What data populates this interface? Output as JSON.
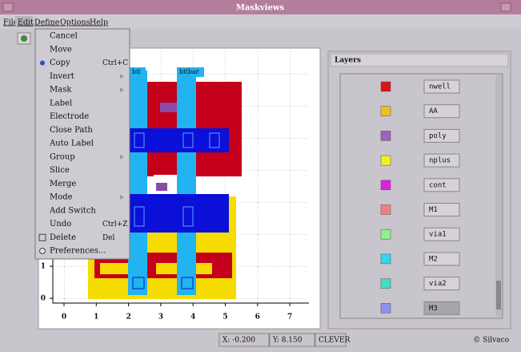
{
  "window": {
    "title": "Maskviews"
  },
  "menu_bar": [
    "File",
    "Edit",
    "Define",
    "Options",
    "Help"
  ],
  "edit_menu": [
    {
      "label": "Cancel"
    },
    {
      "label": "Move"
    },
    {
      "label": "Copy",
      "shortcut": "Ctrl+C"
    },
    {
      "label": "Invert",
      "submenu": true
    },
    {
      "label": "Mask",
      "submenu": true
    },
    {
      "label": "Label"
    },
    {
      "label": "Electrode"
    },
    {
      "label": "Close Path"
    },
    {
      "label": "Auto Label"
    },
    {
      "label": "Group",
      "submenu": true
    },
    {
      "label": "Slice"
    },
    {
      "label": "Merge"
    },
    {
      "label": "Mode",
      "submenu": true
    },
    {
      "label": "Add Switch"
    },
    {
      "label": "Undo",
      "shortcut": "Ctrl+Z"
    },
    {
      "label": "Delete",
      "shortcut": "Del"
    },
    {
      "label": "Preferences..."
    }
  ],
  "canvas": {
    "labels": [
      "bit",
      "bitbar"
    ],
    "x_axis": [
      0,
      1,
      2,
      3,
      4,
      5,
      6,
      7
    ],
    "y_axis": [
      0,
      1
    ]
  },
  "layers_panel": {
    "title": "Layers",
    "layers": [
      {
        "name": "nwell",
        "color": "#e0101c"
      },
      {
        "name": "AA",
        "color": "#f0c020"
      },
      {
        "name": "poly",
        "color": "#a060c0"
      },
      {
        "name": "nplus",
        "color": "#f4f020"
      },
      {
        "name": "cont",
        "color": "#e020e0"
      },
      {
        "name": "M1",
        "color": "#f08080"
      },
      {
        "name": "via1",
        "color": "#90f090"
      },
      {
        "name": "M2",
        "color": "#30d8f0"
      },
      {
        "name": "via2",
        "color": "#40e0c0"
      },
      {
        "name": "M3",
        "color": "#9090f0"
      }
    ]
  },
  "status_bar": {
    "x": "X: -0.200",
    "y": "Y: 8.150",
    "mode": "CLEVER",
    "credit": "© Silvaco"
  }
}
